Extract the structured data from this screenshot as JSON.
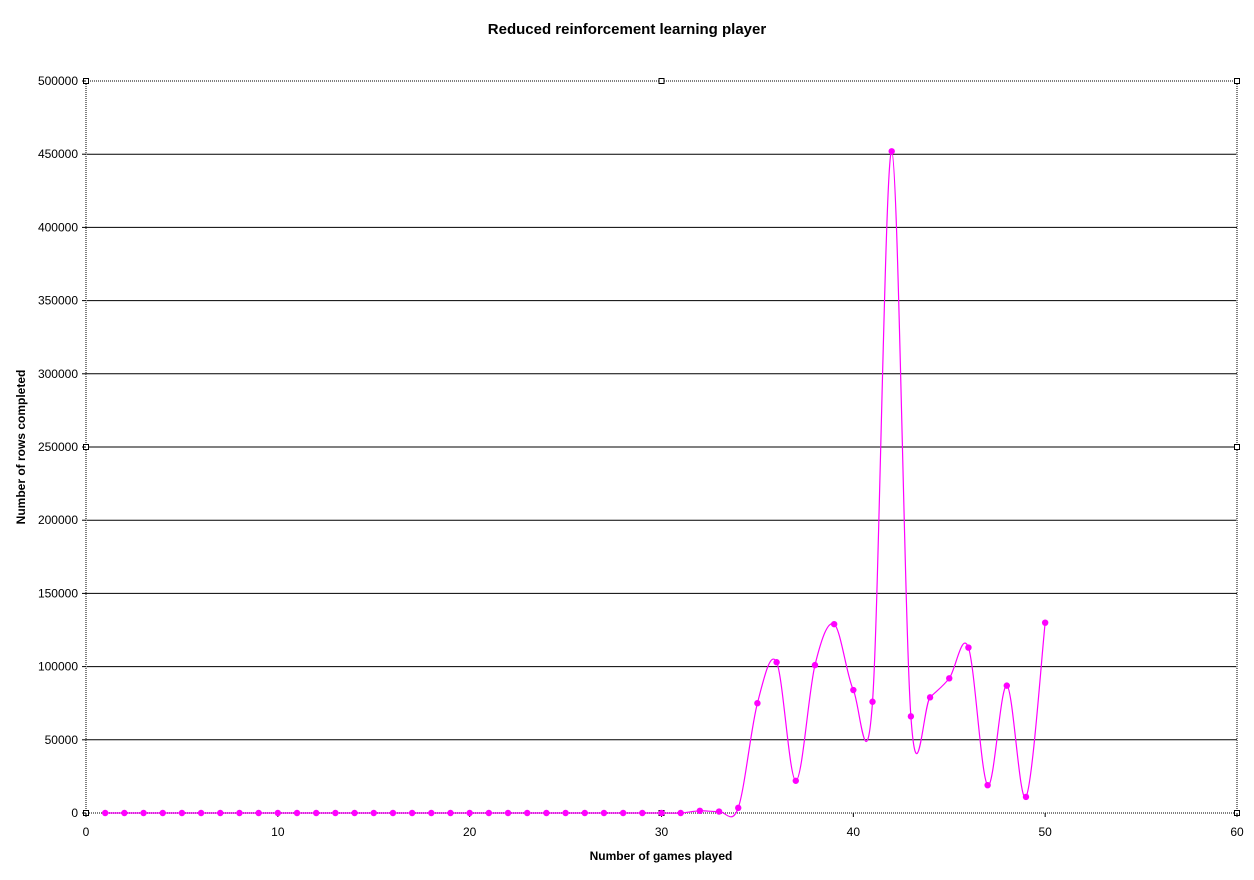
{
  "chart_data": {
    "type": "line",
    "title": "Reduced reinforcement learning player",
    "xlabel": "Number of games played",
    "ylabel": "Number of rows completed",
    "xlim": [
      0,
      60
    ],
    "ylim": [
      0,
      500000
    ],
    "x_ticks": [
      0,
      10,
      20,
      30,
      40,
      50,
      60
    ],
    "y_ticks": [
      0,
      50000,
      100000,
      150000,
      200000,
      250000,
      300000,
      350000,
      400000,
      450000,
      500000
    ],
    "grid": "horizontal",
    "smoothed": true,
    "legend": "none",
    "series": [
      {
        "color": "#ff00ff",
        "x": [
          1,
          2,
          3,
          4,
          5,
          6,
          7,
          8,
          9,
          10,
          11,
          12,
          13,
          14,
          15,
          16,
          17,
          18,
          19,
          20,
          21,
          22,
          23,
          24,
          25,
          26,
          27,
          28,
          29,
          30,
          31,
          32,
          33,
          34,
          35,
          36,
          37,
          38,
          39,
          40,
          41,
          42,
          43,
          44,
          45,
          46,
          47,
          48,
          49,
          50
        ],
        "values": [
          0,
          0,
          0,
          0,
          0,
          0,
          0,
          0,
          0,
          0,
          0,
          0,
          0,
          0,
          0,
          0,
          0,
          0,
          0,
          0,
          0,
          0,
          0,
          0,
          0,
          0,
          0,
          0,
          0,
          0,
          0,
          1500,
          1000,
          3500,
          75000,
          103000,
          22000,
          101000,
          129000,
          84000,
          76000,
          452000,
          66000,
          79000,
          92000,
          113000,
          19000,
          87000,
          11000,
          130000
        ]
      }
    ]
  }
}
